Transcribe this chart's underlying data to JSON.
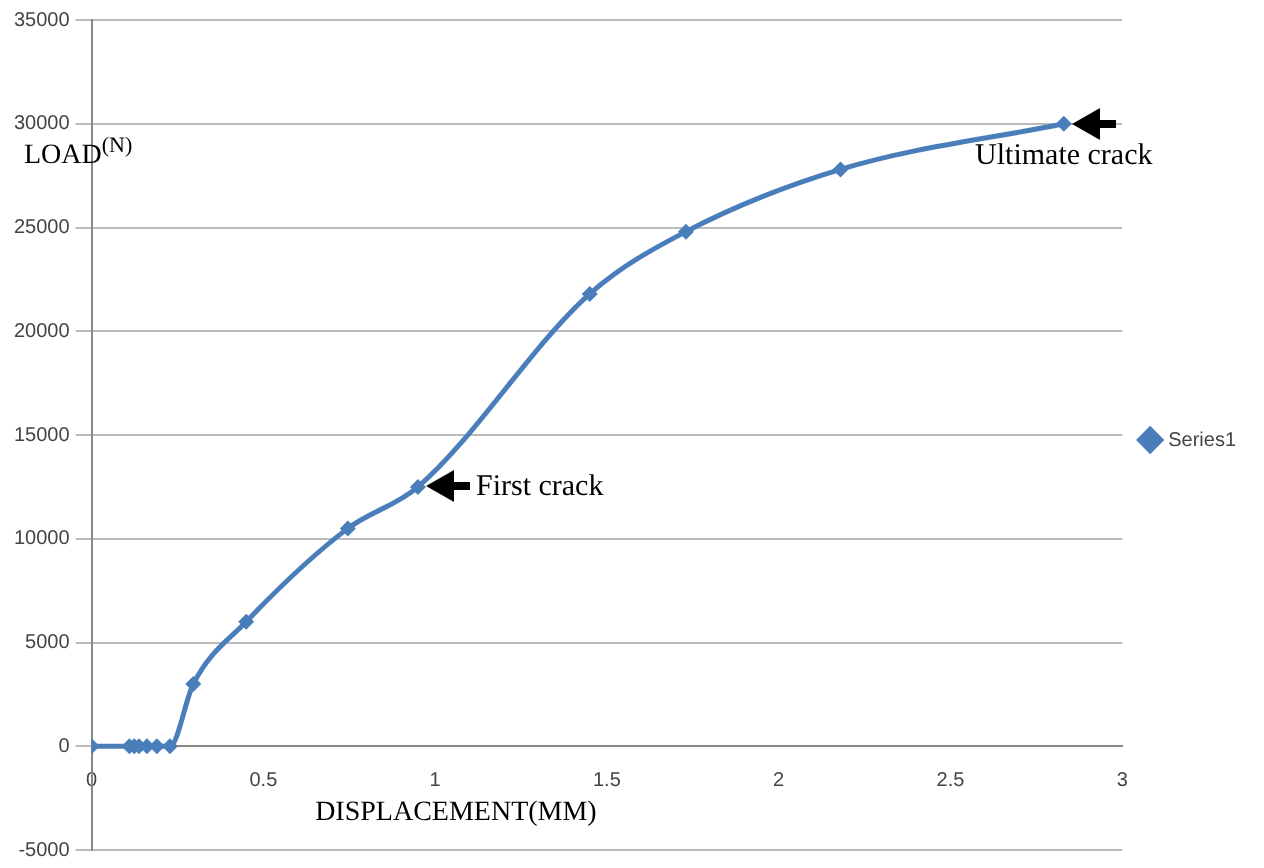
{
  "chart_data": {
    "type": "line",
    "xlabel": "DISPLACEMENT(MM)",
    "ylabel": "LOAD$^{(N)}$",
    "x": [
      0,
      0.11,
      0.124,
      0.138,
      0.161,
      0.19,
      0.228,
      0.296,
      0.45,
      0.746,
      0.95,
      1.45,
      1.73,
      2.18,
      2.83
    ],
    "series": [
      {
        "name": "Series1",
        "color": "#4a7ebb",
        "values": [
          0,
          0,
          0,
          0,
          0,
          0,
          0,
          3000,
          6000,
          10500,
          12500,
          21800,
          24800,
          27800,
          30000
        ]
      }
    ],
    "xlim": [
      0,
      3
    ],
    "xticks": [
      0,
      0.5,
      1,
      1.5,
      2,
      2.5,
      3
    ],
    "ylim": [
      -5000,
      35000
    ],
    "yticks": [
      -5000,
      0,
      5000,
      10000,
      15000,
      20000,
      25000,
      30000,
      35000
    ],
    "grid": "y",
    "legend": "right",
    "marker": "diamond",
    "line_style": "solid",
    "annotations": [
      {
        "text": "First crack",
        "x": 0.95,
        "y": 12500
      },
      {
        "text": "Ultimate crack",
        "x": 2.83,
        "y": 30000
      }
    ]
  }
}
